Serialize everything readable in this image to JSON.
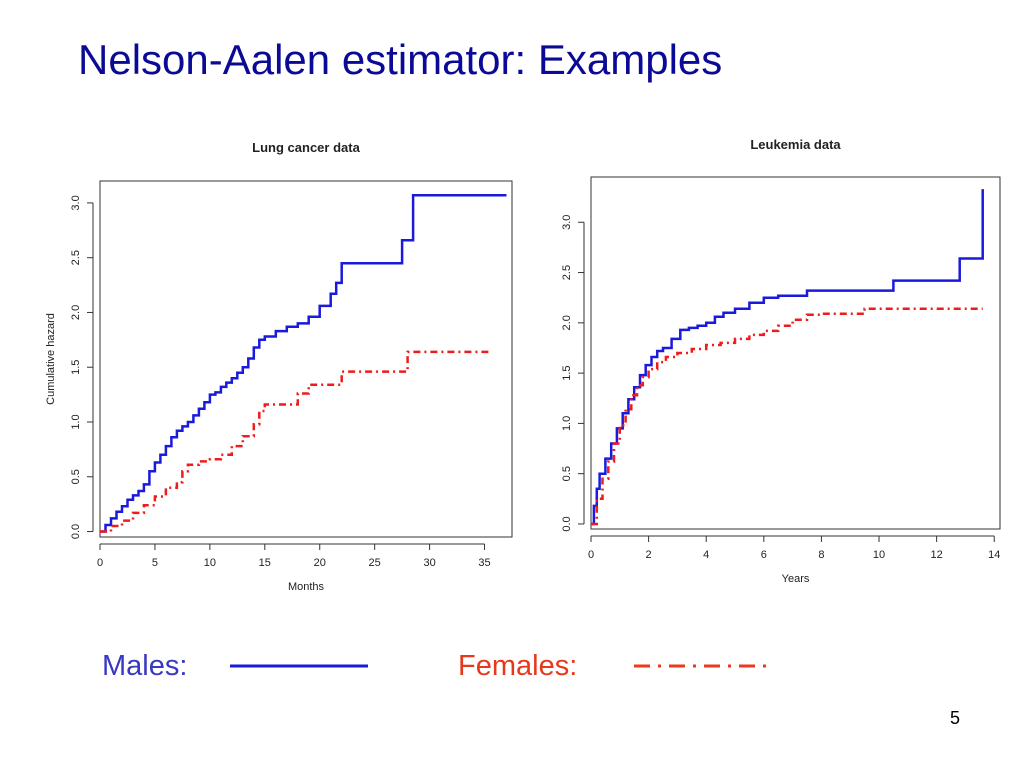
{
  "slide": {
    "title": "Nelson-Aalen estimator: Examples",
    "page_number": "5"
  },
  "legend": {
    "males_label": "Males:",
    "females_label": "Females:",
    "males_color": "#1a1adc",
    "females_color": "#ee1c1c",
    "males_text_color": "#3838c0",
    "females_text_color": "#e8381c",
    "females_line_color": "#ee3a1c"
  },
  "chart_data": [
    {
      "type": "line",
      "title": "Lung cancer data",
      "xlabel": "Months",
      "ylabel": "Cumulative hazard",
      "xlim": [
        0,
        37.5
      ],
      "ylim": [
        -0.05,
        3.2
      ],
      "xticks": [
        0,
        5,
        10,
        15,
        20,
        25,
        30,
        35
      ],
      "yticks": [
        0.0,
        0.5,
        1.0,
        1.5,
        2.0,
        2.5,
        3.0
      ],
      "tick_labels_x": [
        "0",
        "5",
        "10",
        "15",
        "20",
        "25",
        "30",
        "35"
      ],
      "tick_labels_y": [
        "0.0",
        "0.5",
        "1.0",
        "1.5",
        "2.0",
        "2.5",
        "3.0"
      ],
      "step": true,
      "grid": false,
      "series": [
        {
          "name": "Males",
          "style": "solid",
          "color": "#1a1adc",
          "x": [
            0,
            0.5,
            1,
            1.5,
            2,
            2.5,
            3,
            3.5,
            4,
            4.5,
            5,
            5.5,
            6,
            6.5,
            7,
            7.5,
            8,
            8.5,
            9,
            9.5,
            10,
            10.5,
            11,
            11.5,
            12,
            12.5,
            13,
            13.5,
            14,
            14.5,
            15,
            16,
            17,
            18,
            19,
            20,
            21,
            21.5,
            22,
            27.5,
            28.5,
            37
          ],
          "y": [
            0,
            0.06,
            0.12,
            0.18,
            0.23,
            0.29,
            0.33,
            0.37,
            0.43,
            0.55,
            0.63,
            0.7,
            0.78,
            0.86,
            0.92,
            0.96,
            1.0,
            1.06,
            1.12,
            1.18,
            1.25,
            1.27,
            1.32,
            1.36,
            1.4,
            1.45,
            1.5,
            1.58,
            1.68,
            1.75,
            1.78,
            1.83,
            1.87,
            1.9,
            1.96,
            2.06,
            2.17,
            2.27,
            2.45,
            2.66,
            3.07,
            3.07
          ]
        },
        {
          "name": "Females",
          "style": "dashdot",
          "color": "#ee1c1c",
          "x": [
            0,
            1,
            2,
            3,
            4,
            5,
            6,
            7,
            7.5,
            8,
            9,
            10,
            11,
            12,
            13,
            14,
            14.5,
            15,
            16,
            18,
            19,
            20,
            21,
            22,
            25,
            28,
            29,
            30,
            35.5
          ],
          "y": [
            0,
            0.05,
            0.1,
            0.17,
            0.24,
            0.32,
            0.4,
            0.45,
            0.55,
            0.61,
            0.64,
            0.66,
            0.7,
            0.78,
            0.87,
            0.98,
            1.1,
            1.16,
            1.16,
            1.26,
            1.34,
            1.34,
            1.34,
            1.46,
            1.46,
            1.64,
            1.64,
            1.64,
            1.64
          ]
        }
      ]
    },
    {
      "type": "line",
      "title": "Leukemia data",
      "xlabel": "Years",
      "ylabel": "",
      "xlim": [
        0,
        14.2
      ],
      "ylim": [
        -0.05,
        3.45
      ],
      "xticks": [
        0,
        2,
        4,
        6,
        8,
        10,
        12,
        14
      ],
      "yticks": [
        0.0,
        0.5,
        1.0,
        1.5,
        2.0,
        2.5,
        3.0
      ],
      "tick_labels_x": [
        "0",
        "2",
        "4",
        "6",
        "8",
        "10",
        "12",
        "14"
      ],
      "tick_labels_y": [
        "0.0",
        "0.5",
        "1.0",
        "1.5",
        "2.0",
        "2.5",
        "3.0"
      ],
      "step": true,
      "grid": false,
      "series": [
        {
          "name": "Males",
          "style": "solid",
          "color": "#1a1adc",
          "x": [
            0,
            0.1,
            0.2,
            0.3,
            0.5,
            0.7,
            0.9,
            1.1,
            1.3,
            1.5,
            1.7,
            1.9,
            2.1,
            2.3,
            2.5,
            2.8,
            3.1,
            3.4,
            3.7,
            4,
            4.3,
            4.6,
            5,
            5.5,
            6,
            6.5,
            7.5,
            9,
            10.5,
            12,
            12.8,
            13.6
          ],
          "y": [
            0,
            0.18,
            0.35,
            0.5,
            0.65,
            0.8,
            0.95,
            1.1,
            1.24,
            1.36,
            1.48,
            1.58,
            1.66,
            1.72,
            1.75,
            1.84,
            1.93,
            1.95,
            1.97,
            2.0,
            2.06,
            2.1,
            2.14,
            2.2,
            2.25,
            2.27,
            2.32,
            2.32,
            2.42,
            2.42,
            2.64,
            3.33
          ]
        },
        {
          "name": "Females",
          "style": "dashdot",
          "color": "#ee1c1c",
          "x": [
            0,
            0.2,
            0.4,
            0.6,
            0.8,
            1,
            1.2,
            1.4,
            1.6,
            1.8,
            2,
            2.3,
            2.6,
            3,
            3.5,
            4,
            4.5,
            5,
            5.5,
            6,
            6.5,
            7,
            7.5,
            8,
            9.5,
            11,
            13.6
          ],
          "y": [
            0,
            0.25,
            0.45,
            0.62,
            0.8,
            0.98,
            1.14,
            1.28,
            1.38,
            1.46,
            1.54,
            1.61,
            1.66,
            1.7,
            1.74,
            1.78,
            1.8,
            1.84,
            1.88,
            1.92,
            1.97,
            2.03,
            2.08,
            2.09,
            2.14,
            2.14,
            2.14
          ]
        }
      ]
    }
  ]
}
